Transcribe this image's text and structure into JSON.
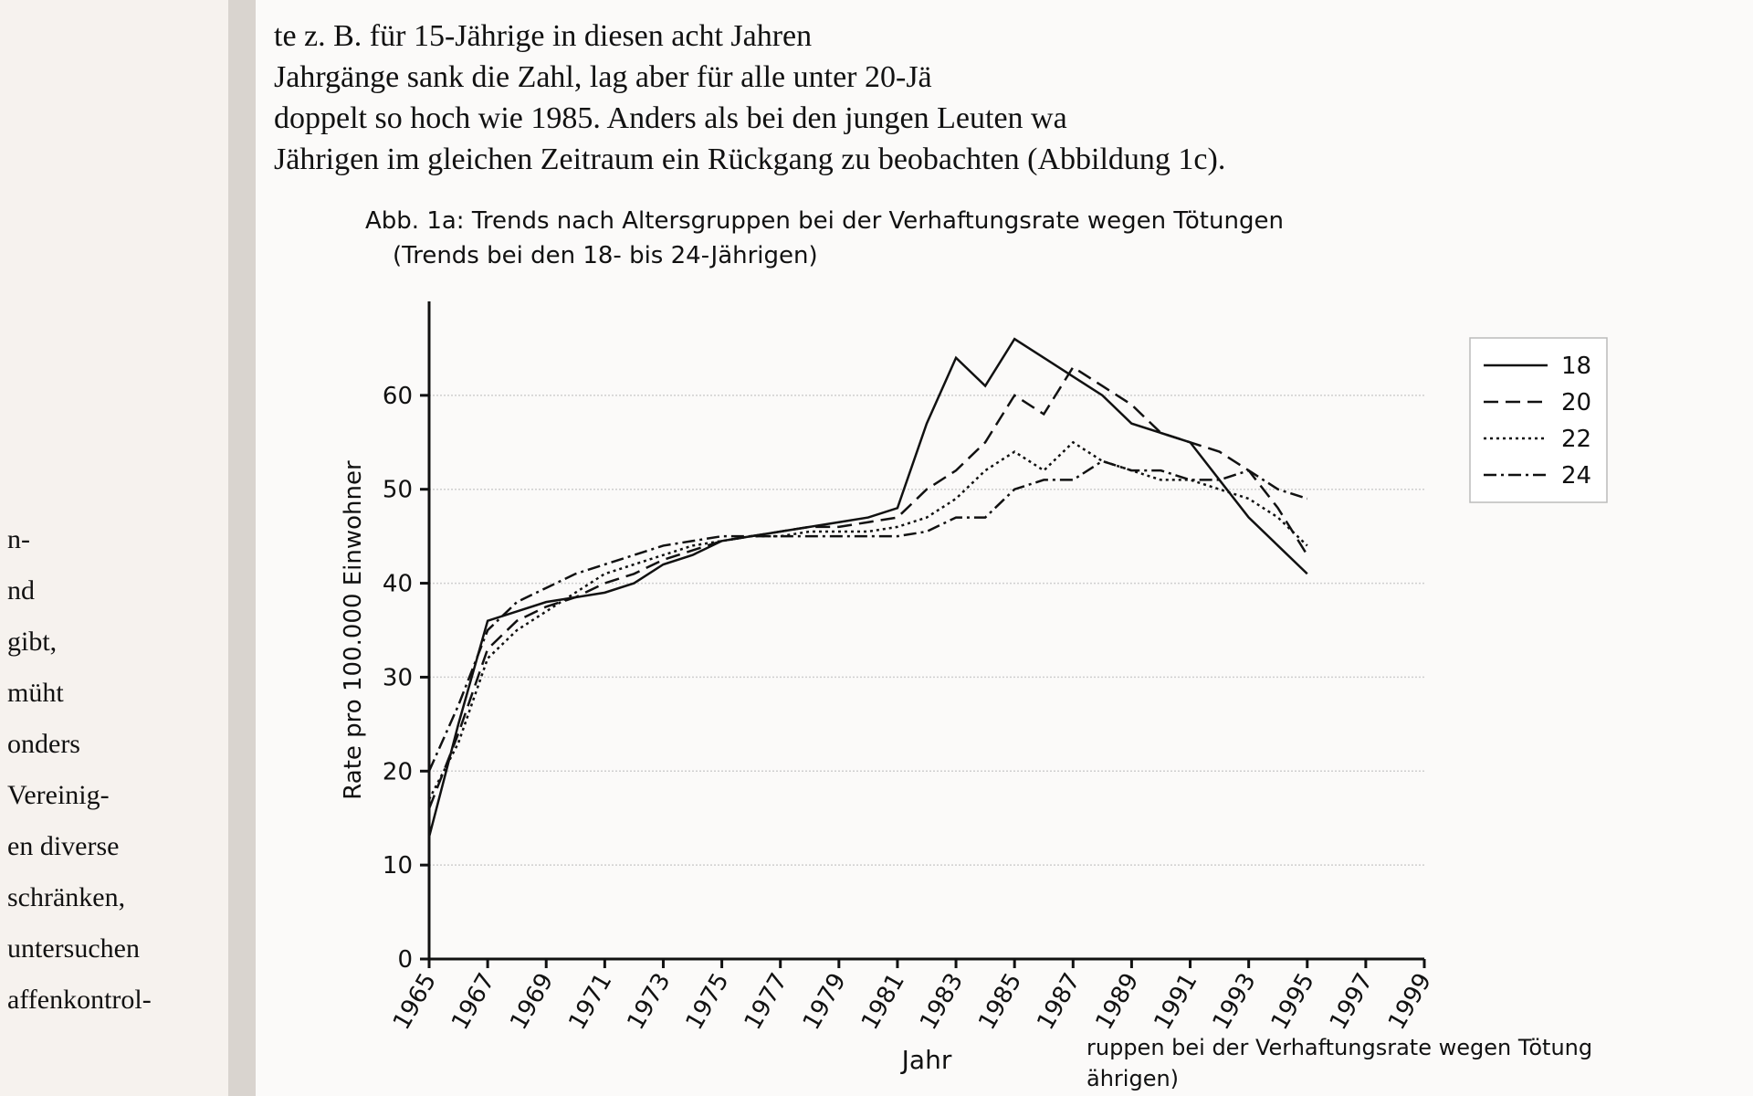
{
  "page_text": {
    "paragraph": [
      "te z. B. für 15-Jährige in diesen acht Jahren",
      "Jahrgänge sank die Zahl, lag aber für alle unter 20-Jä",
      "doppelt so hoch wie 1985. Anders als bei den jungen Leuten wa",
      "Jährigen im gleichen Zeitraum ein Rückgang zu beobachten (Abbildung 1c)."
    ],
    "left_page": [
      "n-",
      "nd",
      "gibt,",
      "müht",
      "onders",
      "Vereinig-",
      "en diverse",
      "schränken,",
      "untersuchen",
      "affenkontrol-"
    ],
    "next_figure": [
      "ruppen bei der Verhaftungsrate wegen Tötung",
      "ährigen)"
    ]
  },
  "chart_data": {
    "type": "line",
    "title": "Abb. 1a: Trends nach Altersgruppen bei der Verhaftungsrate wegen Tötungen",
    "subtitle": "(Trends bei den 18- bis 24-Jährigen)",
    "x_label": "Jahr",
    "y_label": "Rate pro 100.000 Einwohner",
    "x": [
      1965,
      1966,
      1967,
      1968,
      1969,
      1970,
      1971,
      1972,
      1973,
      1974,
      1975,
      1976,
      1977,
      1978,
      1979,
      1980,
      1981,
      1982,
      1983,
      1984,
      1985,
      1986,
      1987,
      1988,
      1989,
      1990,
      1991,
      1992,
      1993,
      1994,
      1995
    ],
    "series": [
      {
        "name": "18",
        "color": "#111111",
        "dash": "none",
        "values": [
          13,
          25,
          36,
          37,
          38,
          38.5,
          39,
          40,
          42,
          43,
          44.5,
          45,
          45.5,
          46,
          46.5,
          47,
          48,
          57,
          64,
          61,
          66,
          64,
          62,
          60,
          57,
          56,
          55,
          51,
          47,
          44,
          41
        ]
      },
      {
        "name": "20",
        "color": "#111111",
        "dash": "16 8",
        "values": [
          16,
          24,
          33,
          36,
          37.5,
          38.5,
          40,
          41,
          42.5,
          43.5,
          44.5,
          45,
          45.5,
          46,
          46,
          46.5,
          47,
          50,
          52,
          55,
          60,
          58,
          63,
          61,
          59,
          56,
          55,
          54,
          52,
          48,
          43
        ]
      },
      {
        "name": "22",
        "color": "#111111",
        "dash": "3 4",
        "values": [
          17,
          23,
          32,
          35,
          37,
          39,
          41,
          42,
          43,
          44,
          44.5,
          45,
          45,
          45.5,
          45.5,
          45.5,
          46,
          47,
          49,
          52,
          54,
          52,
          55,
          53,
          52,
          51,
          51,
          50,
          49,
          47,
          44
        ]
      },
      {
        "name": "24",
        "color": "#111111",
        "dash": "14 5 3 5",
        "values": [
          20,
          27,
          35,
          38,
          39.5,
          41,
          42,
          43,
          44,
          44.5,
          45,
          45,
          45,
          45,
          45,
          45,
          45,
          45.5,
          47,
          47,
          50,
          51,
          51,
          53,
          52,
          52,
          51,
          51,
          52,
          50,
          49
        ]
      }
    ],
    "xlim": [
      1965,
      1999
    ],
    "xticks": [
      1965,
      1967,
      1969,
      1971,
      1973,
      1975,
      1977,
      1979,
      1981,
      1983,
      1985,
      1987,
      1989,
      1991,
      1993,
      1995,
      1997,
      1999
    ],
    "ylim": [
      0,
      70
    ],
    "yticks": [
      0,
      10,
      20,
      30,
      40,
      50,
      60
    ],
    "grid": true,
    "legend": "right"
  }
}
